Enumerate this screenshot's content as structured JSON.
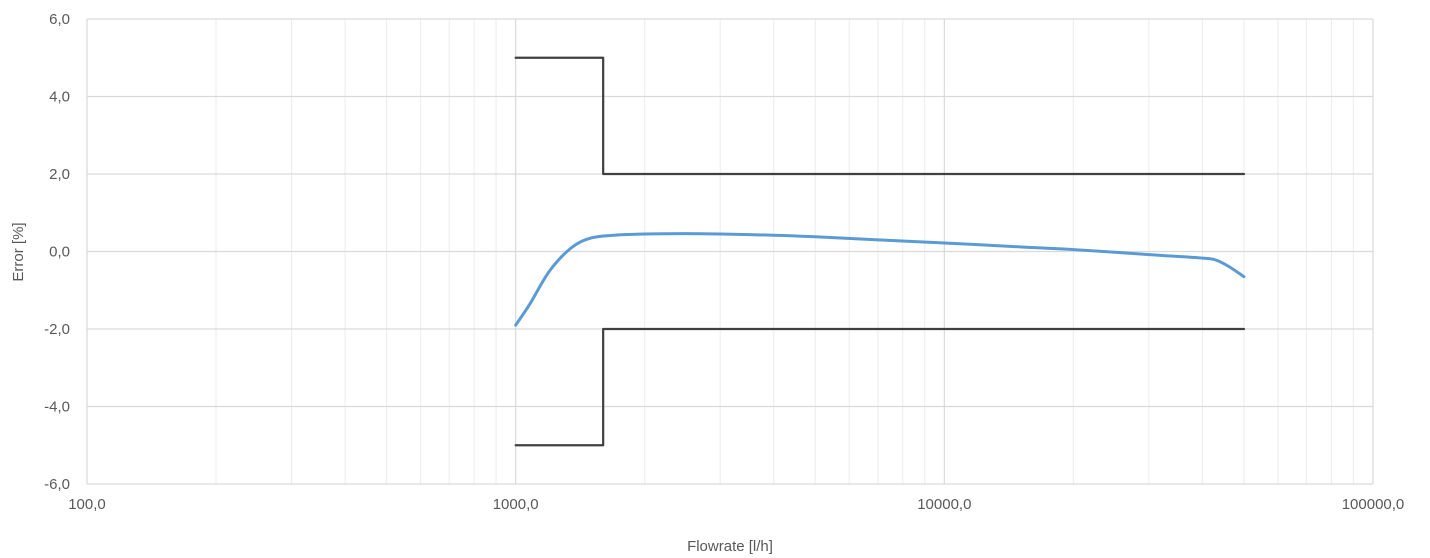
{
  "chart_data": {
    "type": "line",
    "title": "",
    "xlabel": "Flowrate [l/h]",
    "ylabel": "Error [%]",
    "x_scale": "log",
    "xlim": [
      100,
      100000
    ],
    "ylim": [
      -6,
      6
    ],
    "grid": true,
    "legend": "none",
    "x_ticks": [
      {
        "value": 100,
        "label": "100,0"
      },
      {
        "value": 1000,
        "label": "1000,0"
      },
      {
        "value": 10000,
        "label": "10000,0"
      },
      {
        "value": 100000,
        "label": "100000,0"
      }
    ],
    "y_ticks": [
      {
        "value": 6,
        "label": "6,0"
      },
      {
        "value": 4,
        "label": "4,0"
      },
      {
        "value": 2,
        "label": "2,0"
      },
      {
        "value": 0,
        "label": "0,0"
      },
      {
        "value": -2,
        "label": "-2,0"
      },
      {
        "value": -4,
        "label": "-4,0"
      },
      {
        "value": -6,
        "label": "-6,0"
      }
    ],
    "series": [
      {
        "color": "#5b9bd5",
        "x": [
          1000,
          1080,
          1200,
          1350,
          1500,
          1700,
          2000,
          2500,
          3000,
          4000,
          5000,
          7000,
          10000,
          15000,
          20000,
          30000,
          40000,
          43000,
          46000,
          50000
        ],
        "y": [
          -1.9,
          -1.35,
          -0.5,
          0.1,
          0.35,
          0.42,
          0.45,
          0.46,
          0.45,
          0.42,
          0.38,
          0.3,
          0.22,
          0.12,
          0.05,
          -0.08,
          -0.17,
          -0.22,
          -0.38,
          -0.65
        ]
      },
      {
        "color": "#404040",
        "x": [
          1000,
          1600,
          1600,
          50000
        ],
        "y": [
          5,
          5,
          2,
          2
        ]
      },
      {
        "color": "#404040",
        "x": [
          1000,
          1600,
          1600,
          50000
        ],
        "y": [
          -5,
          -5,
          -2,
          -2
        ]
      }
    ]
  }
}
